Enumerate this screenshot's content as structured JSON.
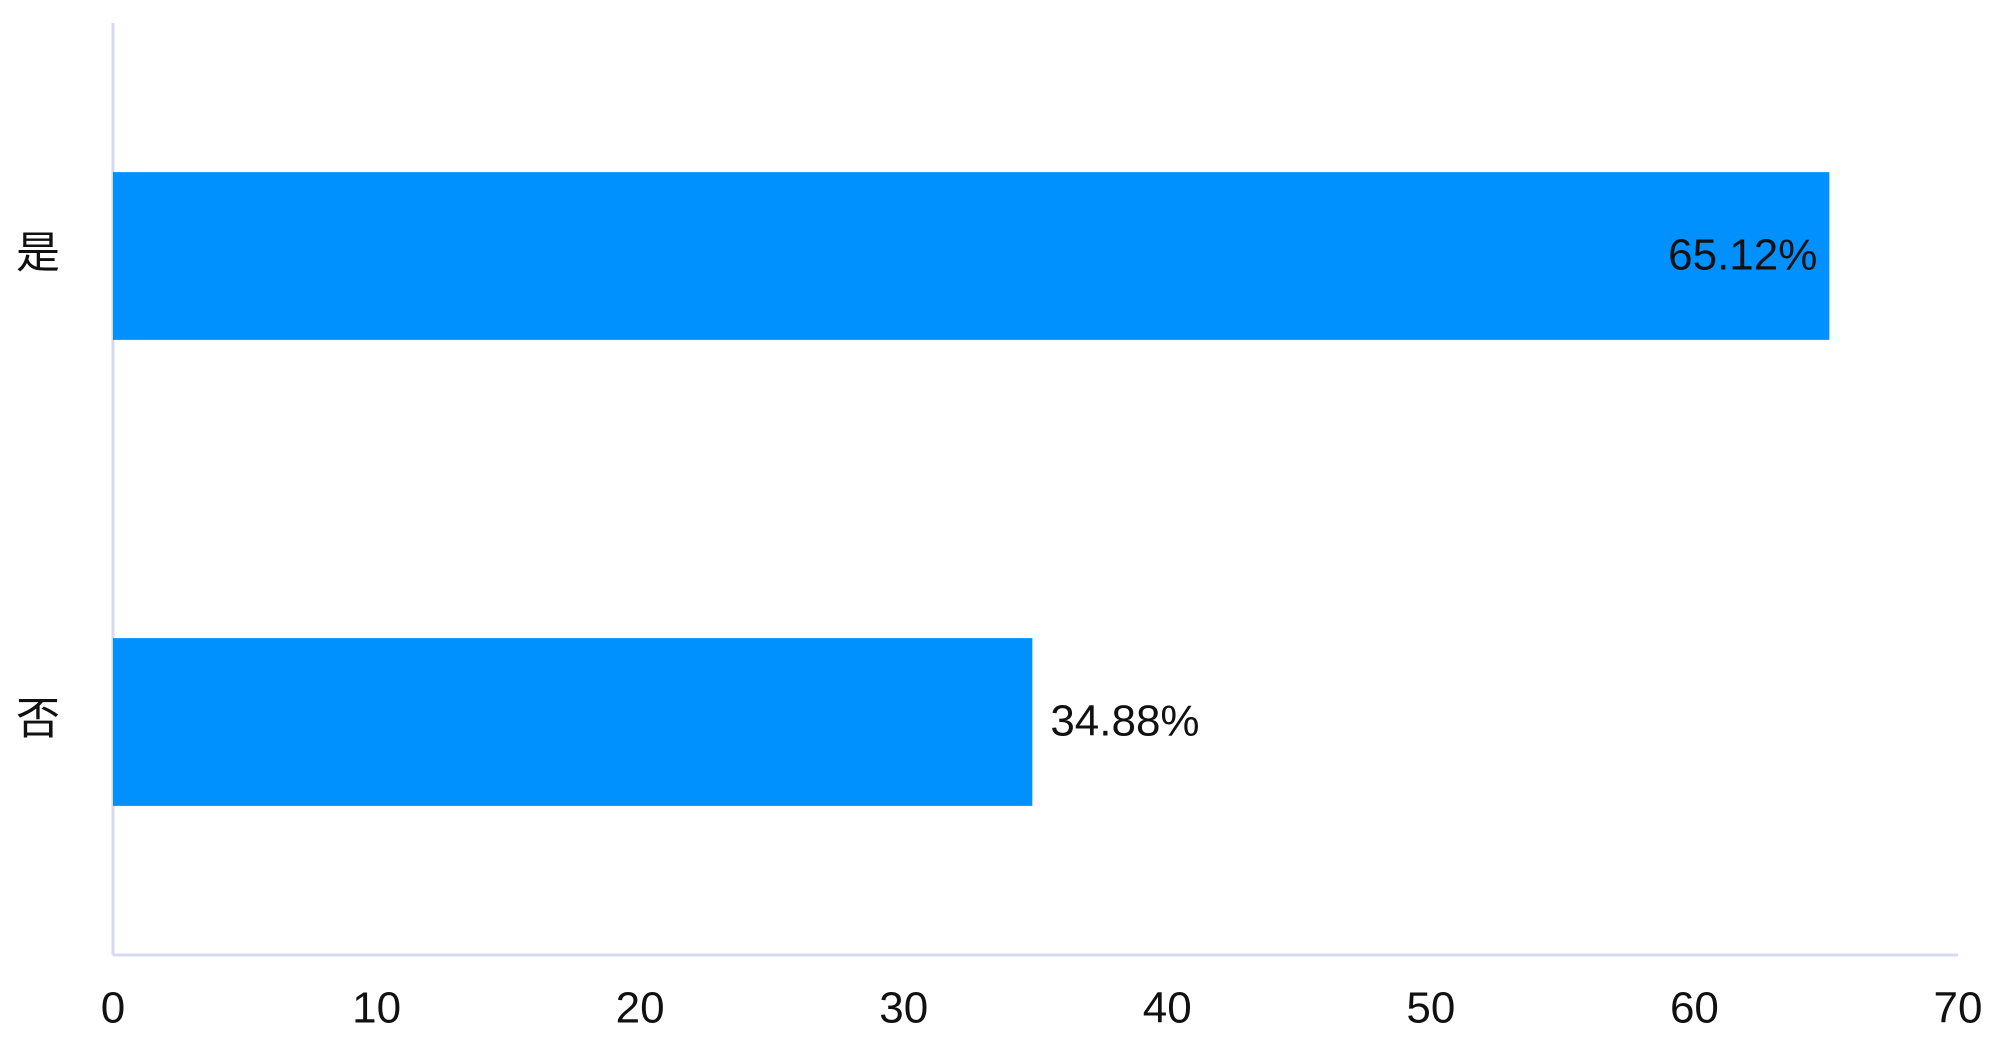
{
  "chart_data": {
    "type": "bar",
    "orientation": "horizontal",
    "categories": [
      "是",
      "否"
    ],
    "values": [
      65.12,
      34.88
    ],
    "value_labels": [
      "65.12%",
      "34.88%"
    ],
    "color": "#0091ff",
    "xlim": [
      0,
      70
    ],
    "xticks": [
      0,
      10,
      20,
      30,
      40,
      50,
      60,
      70
    ]
  }
}
